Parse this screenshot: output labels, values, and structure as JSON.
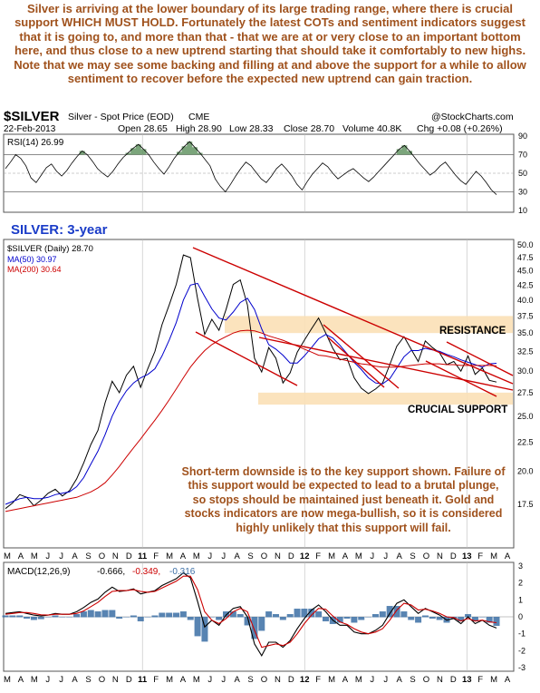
{
  "commentary": "Silver is arriving at the lower boundary of its large trading range, where there is crucial support WHICH MUST HOLD. Fortunately the latest COTs and sentiment indicators suggest that it is going to, and more than that - that we are at or very close to an important bottom here, and thus close to a new uptrend starting that should take it comfortably to new highs. Note that we may see some backing and filling at and above the support for a while to allow sentiment to recover before the expected new uptrend can gain traction.",
  "header": {
    "symbol": "$SILVER",
    "name": "Silver - Spot Price (EOD)",
    "exchange": "CME",
    "watermark": "@StockCharts.com",
    "date": "22-Feb-2013",
    "open": "Open 28.65",
    "high": "High 28.90",
    "low": "Low 28.33",
    "close": "Close 28.70",
    "volume": "Volume 40.8K",
    "chg": "Chg +0.08 (+0.26%)"
  },
  "chart_data": {
    "type": "line",
    "title": "SILVER: 3-year",
    "x_axis": {
      "tick_labels": [
        "M",
        "A",
        "M",
        "J",
        "J",
        "A",
        "S",
        "O",
        "N",
        "D",
        "11",
        "F",
        "M",
        "A",
        "M",
        "J",
        "J",
        "A",
        "S",
        "O",
        "N",
        "D",
        "12",
        "F",
        "M",
        "A",
        "M",
        "J",
        "J",
        "A",
        "S",
        "O",
        "N",
        "D",
        "13",
        "F",
        "M",
        "A"
      ],
      "range": [
        "Mar 2010",
        "Apr 2013"
      ]
    },
    "rsi": {
      "label": "RSI(14) 26.99",
      "ticks": [
        90,
        70,
        50,
        30,
        10
      ],
      "ylim": [
        10,
        90
      ],
      "values": [
        55,
        62,
        70,
        66,
        58,
        45,
        40,
        48,
        56,
        60,
        52,
        47,
        53,
        61,
        68,
        74,
        70,
        63,
        55,
        50,
        46,
        52,
        60,
        67,
        72,
        77,
        81,
        76,
        70,
        62,
        55,
        49,
        57,
        66,
        73,
        79,
        84,
        78,
        72,
        65,
        58,
        44,
        36,
        30,
        38,
        47,
        55,
        62,
        58,
        51,
        44,
        40,
        47,
        55,
        60,
        54,
        47,
        38,
        32,
        41,
        49,
        55,
        61,
        57,
        50,
        44,
        48,
        52,
        55,
        50,
        45,
        41,
        46,
        52,
        58,
        64,
        70,
        76,
        80,
        74,
        67,
        60,
        54,
        48,
        52,
        58,
        62,
        55,
        48,
        42,
        38,
        45,
        52,
        47,
        40,
        32,
        27
      ]
    },
    "price": {
      "legend": "$SILVER (Daily) 28.70",
      "ma50_label": "MA(50) 30.97",
      "ma200_label": "MA(200) 30.64",
      "ylim": [
        15,
        50
      ],
      "log_scale": true,
      "ticks": [
        50.0,
        47.5,
        45.0,
        42.5,
        40.0,
        37.5,
        35.0,
        32.5,
        30.0,
        27.5,
        25.0,
        22.5,
        20.0,
        17.5
      ],
      "series": [
        {
          "name": "$SILVER (Daily)",
          "color": "#000000",
          "values": [
            17.2,
            17.6,
            18.2,
            18.0,
            17.4,
            17.8,
            18.3,
            18.6,
            18.1,
            18.5,
            19.4,
            20.7,
            22.3,
            23.6,
            26.4,
            28.8,
            27.5,
            29.5,
            30.6,
            28.1,
            30.3,
            32.5,
            36.2,
            39.2,
            42.6,
            48.0,
            47.5,
            40.2,
            34.8,
            37.0,
            35.4,
            38.5,
            42.6,
            43.4,
            39.2,
            31.6,
            29.9,
            33.0,
            31.6,
            28.6,
            29.8,
            32.4,
            34.0,
            35.6,
            37.2,
            35.0,
            32.9,
            31.4,
            31.6,
            29.2,
            28.0,
            27.4,
            27.9,
            28.6,
            30.8,
            33.2,
            34.5,
            32.8,
            31.2,
            33.9,
            33.0,
            32.3,
            30.8,
            31.2,
            30.0,
            31.9,
            29.6,
            30.4,
            28.9,
            28.7
          ]
        },
        {
          "name": "MA(50)",
          "color": "#0000cc",
          "values": [
            17.5,
            17.7,
            17.9,
            18.0,
            17.9,
            17.9,
            18.0,
            18.2,
            18.3,
            18.4,
            18.8,
            19.5,
            20.6,
            21.7,
            23.2,
            25.0,
            26.5,
            27.7,
            28.6,
            29.2,
            29.6,
            30.3,
            31.9,
            34.0,
            36.5,
            40.0,
            42.5,
            42.8,
            40.6,
            38.6,
            37.2,
            36.9,
            38.1,
            39.6,
            40.3,
            38.5,
            35.6,
            33.4,
            32.8,
            32.0,
            31.0,
            31.0,
            31.9,
            33.0,
            34.2,
            34.8,
            34.3,
            33.3,
            32.2,
            31.1,
            30.2,
            29.2,
            28.6,
            28.5,
            29.1,
            30.4,
            31.8,
            32.6,
            32.6,
            32.9,
            32.7,
            32.5,
            32.1,
            31.8,
            31.4,
            31.1,
            30.8,
            30.5,
            30.9,
            30.97
          ]
        },
        {
          "name": "MA(200)",
          "color": "#cc0000",
          "values": [
            17.0,
            17.1,
            17.2,
            17.3,
            17.4,
            17.5,
            17.6,
            17.7,
            17.8,
            17.9,
            18.0,
            18.2,
            18.4,
            18.7,
            19.1,
            19.7,
            20.4,
            21.2,
            22.0,
            22.8,
            23.7,
            24.6,
            25.6,
            26.7,
            27.9,
            29.2,
            30.5,
            31.6,
            32.6,
            33.4,
            34.0,
            34.5,
            35.0,
            35.3,
            35.4,
            35.3,
            35.0,
            34.6,
            34.3,
            34.0,
            33.6,
            33.2,
            32.8,
            32.4,
            32.0,
            31.9,
            31.7,
            31.5,
            31.3,
            31.1,
            30.9,
            30.8,
            30.6,
            30.5,
            30.5,
            30.5,
            30.6,
            30.7,
            30.8,
            30.9,
            30.9,
            30.9,
            30.8,
            30.8,
            30.7,
            30.7,
            30.7,
            30.7,
            30.7,
            30.64
          ]
        }
      ],
      "resistance_label": "RESISTANCE",
      "support_label": "CRUCIAL SUPPORT"
    },
    "macd": {
      "label": "MACD(12,26,9)",
      "macd_val": "-0.666,",
      "signal_val": "-0.349,",
      "hist_val": "-0.316",
      "ylim": [
        -3,
        3
      ],
      "ticks": [
        3,
        2,
        1,
        0,
        -1,
        -2,
        -3
      ],
      "macd_values": [
        0.2,
        0.25,
        0.3,
        0.2,
        0.1,
        0.05,
        0.1,
        0.2,
        0.15,
        0.15,
        0.3,
        0.55,
        0.85,
        1.05,
        1.45,
        1.75,
        1.5,
        1.55,
        1.65,
        1.35,
        1.45,
        1.55,
        1.85,
        2.05,
        2.25,
        2.6,
        2.3,
        0.9,
        -0.6,
        -0.2,
        -0.5,
        0.1,
        0.5,
        0.6,
        0.0,
        -1.6,
        -2.3,
        -1.5,
        -1.5,
        -1.8,
        -1.4,
        -0.7,
        -0.1,
        0.4,
        0.7,
        0.3,
        -0.2,
        -0.5,
        -0.5,
        -0.9,
        -1.0,
        -1.0,
        -0.8,
        -0.5,
        0.2,
        0.8,
        1.0,
        0.6,
        0.2,
        0.5,
        0.3,
        0.1,
        -0.2,
        -0.1,
        -0.4,
        0.0,
        -0.4,
        -0.2,
        -0.5,
        -0.666
      ],
      "signal_values": [
        0.15,
        0.2,
        0.25,
        0.25,
        0.2,
        0.12,
        0.1,
        0.15,
        0.15,
        0.15,
        0.2,
        0.35,
        0.6,
        0.85,
        1.2,
        1.5,
        1.55,
        1.55,
        1.6,
        1.5,
        1.45,
        1.5,
        1.7,
        1.9,
        2.1,
        2.4,
        2.4,
        1.6,
        0.3,
        -0.2,
        -0.4,
        -0.1,
        0.3,
        0.5,
        0.3,
        -0.8,
        -1.8,
        -1.7,
        -1.6,
        -1.7,
        -1.5,
        -1.0,
        -0.4,
        0.1,
        0.5,
        0.45,
        0.05,
        -0.3,
        -0.45,
        -0.7,
        -0.9,
        -1.0,
        -0.9,
        -0.7,
        -0.2,
        0.4,
        0.8,
        0.7,
        0.4,
        0.45,
        0.35,
        0.2,
        0.0,
        -0.05,
        -0.25,
        -0.1,
        -0.25,
        -0.2,
        -0.3,
        -0.349
      ]
    }
  }
}
